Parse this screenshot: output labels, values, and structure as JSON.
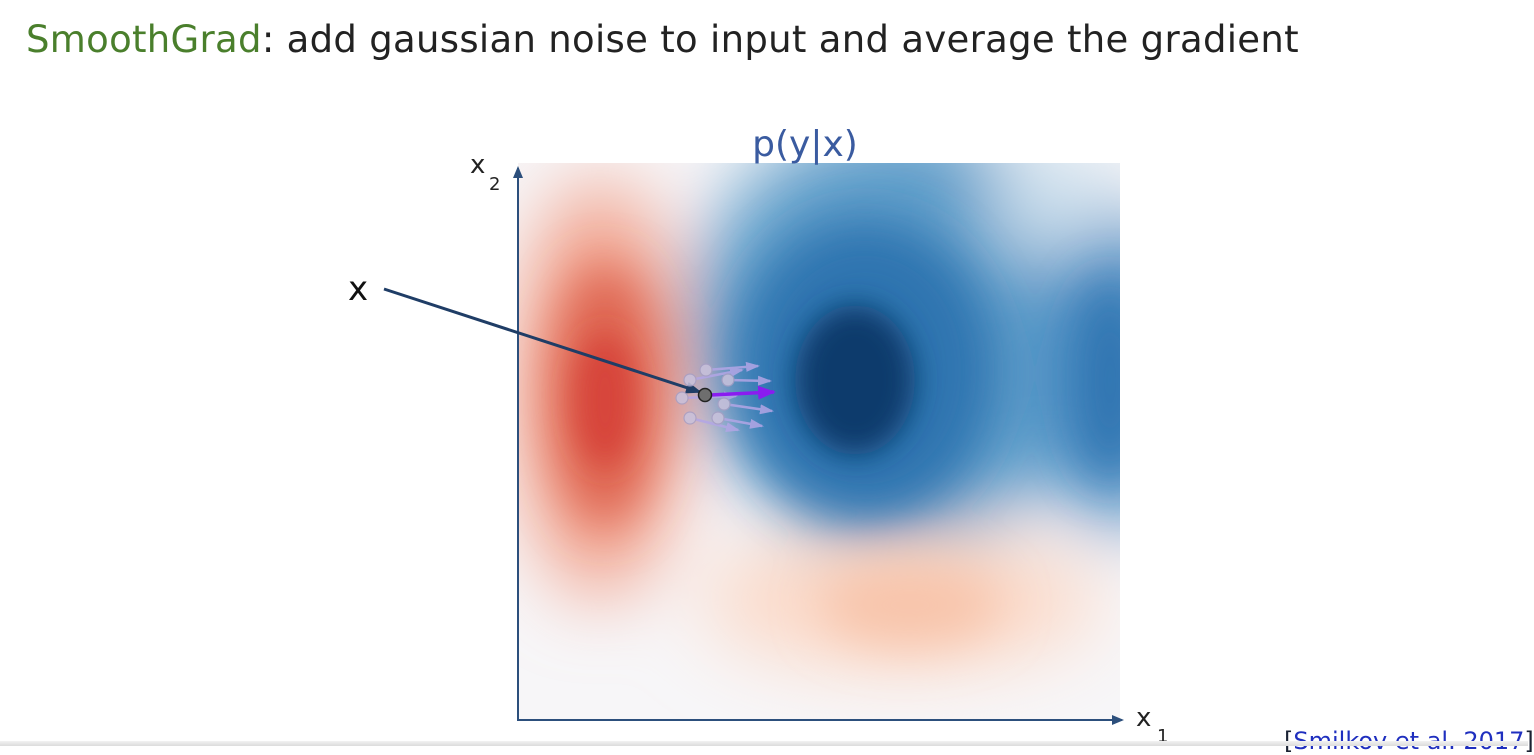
{
  "title": {
    "highlight": "SmoothGrad",
    "rest": ": add gaussian noise to input and average the gradient",
    "highlight_color": "#4a7f2c"
  },
  "diagram": {
    "plot_title": "p(y|x)",
    "axis_x_label": "x",
    "axis_x_subscript": "1",
    "axis_y_label": "x",
    "axis_y_subscript": "2",
    "point_label": "x",
    "colors": {
      "axis": "#2c4f7c",
      "pointer_arrow": "#1f3d66",
      "gradient_arrow": "#8a1cf0",
      "noisy_samples": "#b9b2d6",
      "red_region": "#d7443b",
      "blue_region": "#0a3a6c"
    }
  },
  "reference": {
    "open": "[",
    "text": "Smilkov et al. 2017",
    "close": "]"
  }
}
